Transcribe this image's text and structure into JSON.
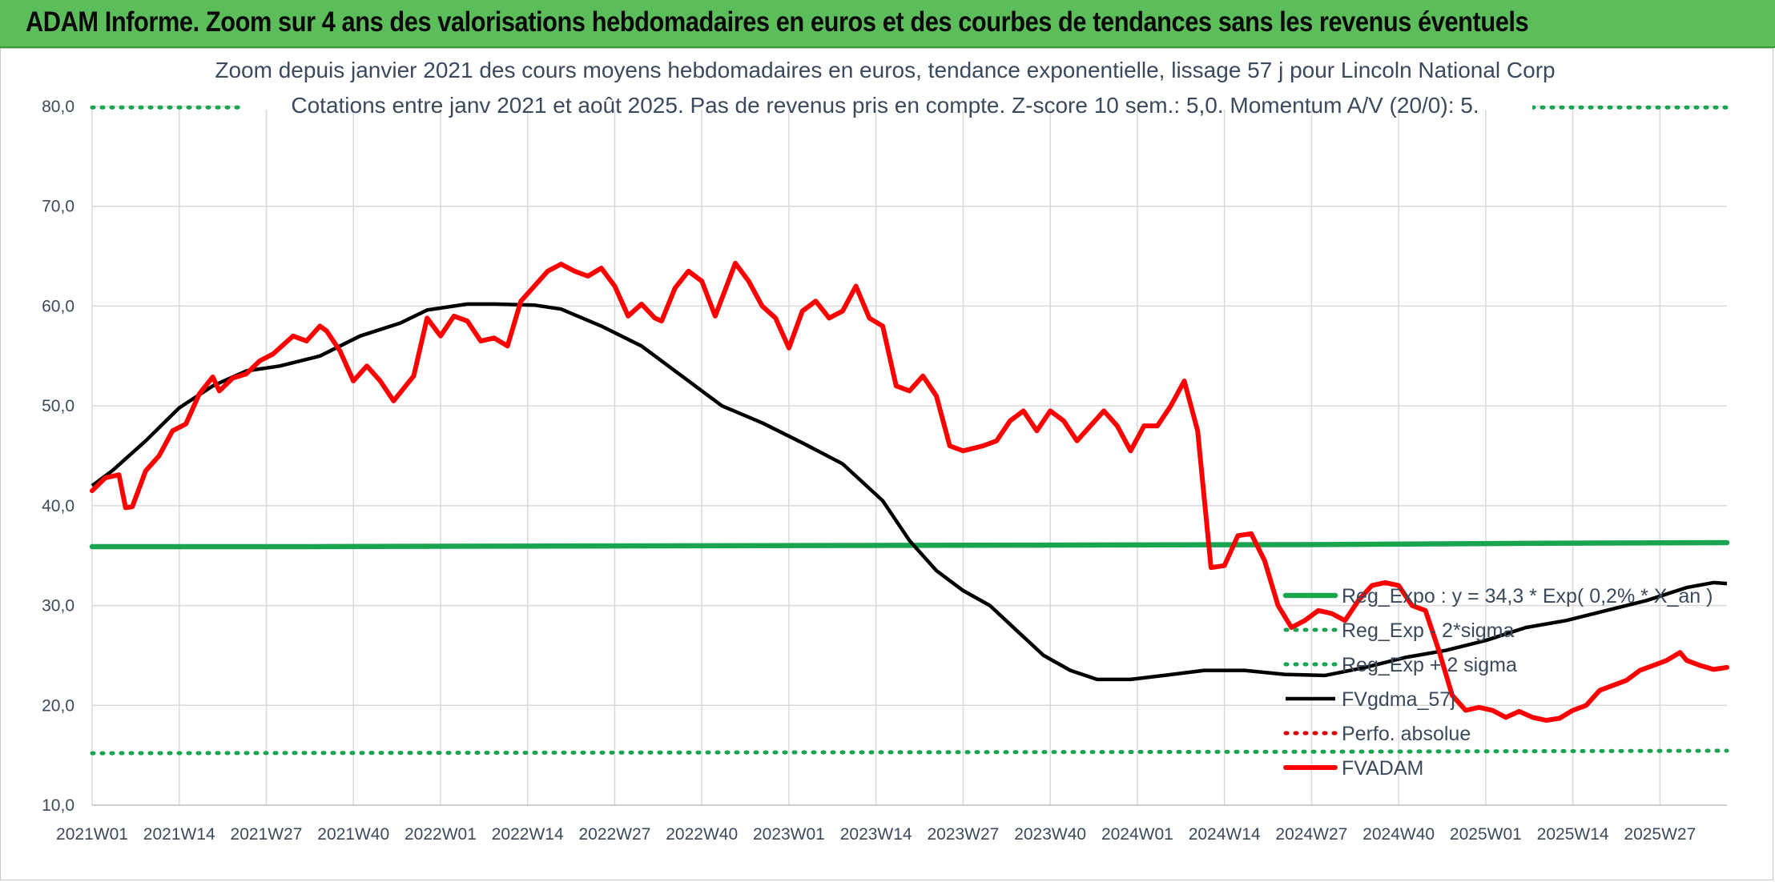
{
  "banner": {
    "title": "ADAM Informe. Zoom sur 4 ans des valorisations hebdomadaires en euros et des courbes de tendances sans les revenus éventuels"
  },
  "colors": {
    "banner_bg": "#5cbd5b",
    "regression": "#19a550",
    "sigma_band": "#19a550",
    "fvgdma": "#000000",
    "perfo": "#e00000",
    "fvadam": "#ff0000",
    "grid": "#d9d9d9",
    "text": "#3a4a5c"
  },
  "chart_data": {
    "type": "line",
    "title_lines": [
      "Zoom depuis janvier 2021 des cours moyens hebdomadaires en euros, tendance exponentielle, lissage 57 j pour Lincoln National Corp",
      "Cotations entre janv 2021 et août 2025. Pas de revenus pris en compte. Z-score 10 sem.: 5,0. Momentum A/V (20/0): 5."
    ],
    "ylim": [
      10,
      80
    ],
    "yticks": [
      "10,0",
      "20,0",
      "30,0",
      "40,0",
      "50,0",
      "60,0",
      "70,0",
      "80,0"
    ],
    "x_labels": [
      "2021W01",
      "2021W14",
      "2021W27",
      "2021W40",
      "2022W01",
      "2022W14",
      "2022W27",
      "2022W40",
      "2023W01",
      "2023W14",
      "2023W27",
      "2023W40",
      "2024W01",
      "2024W14",
      "2024W27",
      "2024W40",
      "2025W01",
      "2025W14",
      "2025W27"
    ],
    "week_count": 245,
    "grid": true,
    "legend_position": "right",
    "series": [
      {
        "name": "Reg_Expo : y = 34,3 * Exp( 0,2% * X_an )",
        "style": "solid-thick",
        "color": "#19a550",
        "values": [
          [
            0,
            35.9
          ],
          [
            30,
            35.9
          ],
          [
            60,
            35.95
          ],
          [
            100,
            36.0
          ],
          [
            140,
            36.05
          ],
          [
            180,
            36.1
          ],
          [
            220,
            36.25
          ],
          [
            244,
            36.3
          ]
        ]
      },
      {
        "name": "Reg_Exp - 2*sigma",
        "style": "dotted",
        "color": "#19a550",
        "values": [
          [
            0,
            15.2
          ],
          [
            60,
            15.25
          ],
          [
            120,
            15.3
          ],
          [
            180,
            15.35
          ],
          [
            244,
            15.45
          ]
        ]
      },
      {
        "name": "Reg_Exp + 2 sigma",
        "style": "dotted",
        "color": "#19a550",
        "values": [
          [
            0,
            79.9
          ],
          [
            244,
            79.9
          ]
        ]
      },
      {
        "name": "FVgdma_57j",
        "style": "solid",
        "color": "#000000",
        "values": [
          [
            0,
            42.0
          ],
          [
            3,
            43.5
          ],
          [
            8,
            46.5
          ],
          [
            13,
            49.8
          ],
          [
            18,
            52.0
          ],
          [
            23,
            53.5
          ],
          [
            28,
            54.0
          ],
          [
            34,
            55.0
          ],
          [
            40,
            57.0
          ],
          [
            46,
            58.3
          ],
          [
            50,
            59.6
          ],
          [
            56,
            60.2
          ],
          [
            60,
            60.2
          ],
          [
            66,
            60.1
          ],
          [
            70,
            59.7
          ],
          [
            76,
            58.0
          ],
          [
            82,
            56.0
          ],
          [
            88,
            53.0
          ],
          [
            94,
            50.0
          ],
          [
            100,
            48.3
          ],
          [
            106,
            46.3
          ],
          [
            112,
            44.2
          ],
          [
            118,
            40.5
          ],
          [
            122,
            36.5
          ],
          [
            126,
            33.5
          ],
          [
            130,
            31.5
          ],
          [
            134,
            30.0
          ],
          [
            138,
            27.5
          ],
          [
            142,
            25.0
          ],
          [
            146,
            23.5
          ],
          [
            150,
            22.6
          ],
          [
            155,
            22.6
          ],
          [
            160,
            23.0
          ],
          [
            166,
            23.5
          ],
          [
            172,
            23.5
          ],
          [
            178,
            23.1
          ],
          [
            184,
            23.0
          ],
          [
            190,
            23.8
          ],
          [
            196,
            24.8
          ],
          [
            202,
            25.5
          ],
          [
            208,
            26.5
          ],
          [
            214,
            27.8
          ],
          [
            220,
            28.5
          ],
          [
            226,
            29.5
          ],
          [
            232,
            30.5
          ],
          [
            238,
            31.8
          ],
          [
            242,
            32.3
          ],
          [
            244,
            32.2
          ]
        ]
      },
      {
        "name": "Perfo. absolue",
        "style": "dotted",
        "color": "#e00000",
        "values": []
      },
      {
        "name": "FVADAM",
        "style": "solid-thick",
        "color": "#ff0000",
        "values": [
          [
            0,
            41.5
          ],
          [
            2,
            42.8
          ],
          [
            4,
            43.1
          ],
          [
            5,
            39.8
          ],
          [
            6,
            39.9
          ],
          [
            8,
            43.5
          ],
          [
            10,
            45.0
          ],
          [
            12,
            47.5
          ],
          [
            14,
            48.2
          ],
          [
            16,
            51.2
          ],
          [
            18,
            52.9
          ],
          [
            19,
            51.5
          ],
          [
            21,
            52.8
          ],
          [
            23,
            53.2
          ],
          [
            25,
            54.5
          ],
          [
            27,
            55.2
          ],
          [
            30,
            57.0
          ],
          [
            32,
            56.5
          ],
          [
            34,
            58.0
          ],
          [
            35,
            57.5
          ],
          [
            37,
            55.5
          ],
          [
            39,
            52.5
          ],
          [
            41,
            54.0
          ],
          [
            43,
            52.5
          ],
          [
            45,
            50.5
          ],
          [
            48,
            53.0
          ],
          [
            50,
            58.8
          ],
          [
            52,
            57.0
          ],
          [
            54,
            59.0
          ],
          [
            56,
            58.5
          ],
          [
            58,
            56.5
          ],
          [
            60,
            56.8
          ],
          [
            62,
            56.0
          ],
          [
            64,
            60.5
          ],
          [
            66,
            62.0
          ],
          [
            68,
            63.5
          ],
          [
            70,
            64.2
          ],
          [
            72,
            63.5
          ],
          [
            74,
            63.0
          ],
          [
            76,
            63.8
          ],
          [
            78,
            62.0
          ],
          [
            80,
            59.0
          ],
          [
            82,
            60.2
          ],
          [
            84,
            58.8
          ],
          [
            85,
            58.5
          ],
          [
            87,
            61.8
          ],
          [
            89,
            63.5
          ],
          [
            91,
            62.5
          ],
          [
            93,
            59.0
          ],
          [
            96,
            64.3
          ],
          [
            98,
            62.5
          ],
          [
            100,
            60.0
          ],
          [
            102,
            58.8
          ],
          [
            104,
            55.8
          ],
          [
            106,
            59.5
          ],
          [
            108,
            60.5
          ],
          [
            110,
            58.8
          ],
          [
            112,
            59.5
          ],
          [
            114,
            62.0
          ],
          [
            116,
            58.8
          ],
          [
            118,
            58.0
          ],
          [
            120,
            52.0
          ],
          [
            122,
            51.5
          ],
          [
            124,
            53.0
          ],
          [
            126,
            51.0
          ],
          [
            128,
            46.0
          ],
          [
            130,
            45.5
          ],
          [
            133,
            46.0
          ],
          [
            135,
            46.5
          ],
          [
            137,
            48.5
          ],
          [
            139,
            49.5
          ],
          [
            141,
            47.5
          ],
          [
            143,
            49.5
          ],
          [
            145,
            48.5
          ],
          [
            147,
            46.5
          ],
          [
            149,
            48.0
          ],
          [
            151,
            49.5
          ],
          [
            153,
            48.0
          ],
          [
            155,
            45.5
          ],
          [
            157,
            48.0
          ],
          [
            159,
            48.0
          ],
          [
            161,
            50.0
          ],
          [
            163,
            52.5
          ],
          [
            165,
            47.5
          ],
          [
            167,
            33.8
          ],
          [
            169,
            34.0
          ],
          [
            171,
            37.0
          ],
          [
            173,
            37.2
          ],
          [
            175,
            34.5
          ],
          [
            177,
            30.0
          ],
          [
            179,
            27.8
          ],
          [
            181,
            28.5
          ],
          [
            183,
            29.5
          ],
          [
            185,
            29.2
          ],
          [
            187,
            28.5
          ],
          [
            189,
            30.5
          ],
          [
            191,
            32.0
          ],
          [
            193,
            32.3
          ],
          [
            195,
            32.0
          ],
          [
            197,
            30.0
          ],
          [
            199,
            29.5
          ],
          [
            201,
            25.5
          ],
          [
            203,
            21.0
          ],
          [
            205,
            19.5
          ],
          [
            207,
            19.8
          ],
          [
            209,
            19.5
          ],
          [
            211,
            18.8
          ],
          [
            213,
            19.4
          ],
          [
            215,
            18.8
          ],
          [
            217,
            18.5
          ],
          [
            219,
            18.7
          ],
          [
            221,
            19.5
          ],
          [
            223,
            20.0
          ],
          [
            225,
            21.5
          ],
          [
            227,
            22.0
          ],
          [
            229,
            22.5
          ],
          [
            231,
            23.5
          ],
          [
            233,
            24.0
          ],
          [
            235,
            24.5
          ],
          [
            237,
            25.3
          ],
          [
            238,
            24.5
          ],
          [
            240,
            24.0
          ],
          [
            242,
            23.6
          ],
          [
            244,
            23.8
          ]
        ]
      }
    ]
  },
  "legend": [
    {
      "label": "Reg_Expo : y = 34,3 * Exp( 0,2% * X_an )",
      "style": "solid-thick",
      "color": "#19a550"
    },
    {
      "label": "Reg_Exp - 2*sigma",
      "style": "dotted",
      "color": "#19a550"
    },
    {
      "label": "Reg_Exp + 2 sigma",
      "style": "dotted",
      "color": "#19a550"
    },
    {
      "label": "FVgdma_57j",
      "style": "solid",
      "color": "#000000"
    },
    {
      "label": "Perfo. absolue",
      "style": "dotted",
      "color": "#e00000"
    },
    {
      "label": "FVADAM",
      "style": "solid-thick",
      "color": "#ff0000"
    }
  ]
}
